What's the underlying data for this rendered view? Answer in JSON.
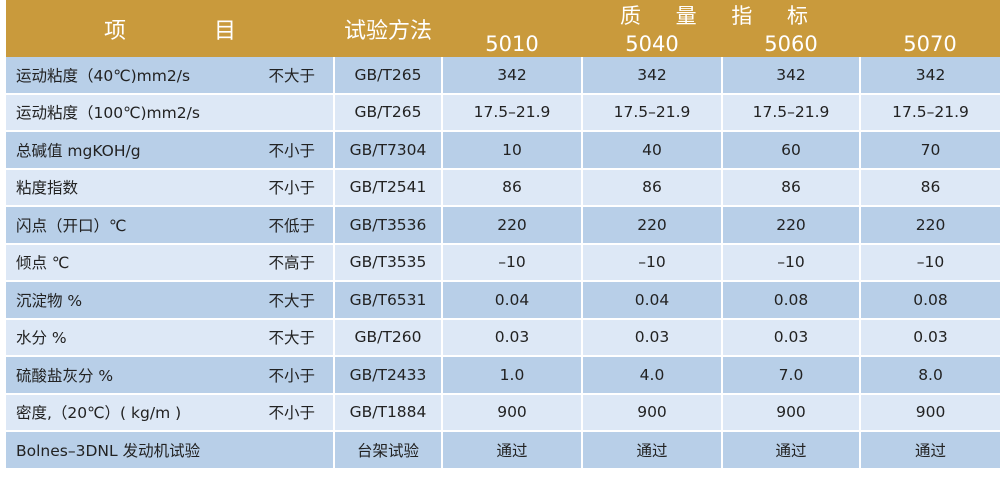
{
  "header": {
    "item_label_left": "项",
    "item_label_right": "目",
    "method_label": "试验方法",
    "quality_label": "质 量 指 标",
    "grades": [
      "5010",
      "5040",
      "5060",
      "5070"
    ]
  },
  "rows": [
    {
      "name": "运动粘度（40℃)mm2/s",
      "limit": "不大于",
      "method": "GB/T265",
      "values": [
        "342",
        "342",
        "342",
        "342"
      ]
    },
    {
      "name": "运动粘度（100℃)mm2/s",
      "limit": "",
      "method": "GB/T265",
      "values": [
        "17.5–21.9",
        "17.5–21.9",
        "17.5–21.9",
        "17.5–21.9"
      ]
    },
    {
      "name": "总碱值 mgKOH/g",
      "limit": "不小于",
      "method": "GB/T7304",
      "values": [
        "10",
        "40",
        "60",
        "70"
      ]
    },
    {
      "name": "粘度指数",
      "limit": "不小于",
      "method": "GB/T2541",
      "values": [
        "86",
        "86",
        "86",
        "86"
      ]
    },
    {
      "name": "闪点（开口）℃",
      "limit": "不低于",
      "method": "GB/T3536",
      "values": [
        "220",
        "220",
        "220",
        "220"
      ]
    },
    {
      "name": "倾点 ℃",
      "limit": "不高于",
      "method": "GB/T3535",
      "values": [
        "–10",
        "–10",
        "–10",
        "–10"
      ]
    },
    {
      "name": "沉淀物 %",
      "limit": "不大于",
      "method": "GB/T6531",
      "values": [
        "0.04",
        "0.04",
        "0.08",
        "0.08"
      ]
    },
    {
      "name": "水分 %",
      "limit": "不大于",
      "method": "GB/T260",
      "values": [
        "0.03",
        "0.03",
        "0.03",
        "0.03"
      ]
    },
    {
      "name": "硫酸盐灰分 %",
      "limit": "不小于",
      "method": "GB/T2433",
      "values": [
        "1.0",
        "4.0",
        "7.0",
        "8.0"
      ]
    },
    {
      "name": "密度,（20℃）( kg/m )",
      "limit": "不小于",
      "method": "GB/T1884",
      "values": [
        "900",
        "900",
        "900",
        "900"
      ]
    },
    {
      "name": "Bolnes–3DNL 发动机试验",
      "limit": "",
      "method": "台架试验",
      "values": [
        "通过",
        "通过",
        "通过",
        "通过"
      ]
    }
  ],
  "colors": {
    "header_gold": "#c99a3c",
    "row_dark_blue": "#b8cfe8",
    "row_light_blue": "#dde8f6"
  }
}
